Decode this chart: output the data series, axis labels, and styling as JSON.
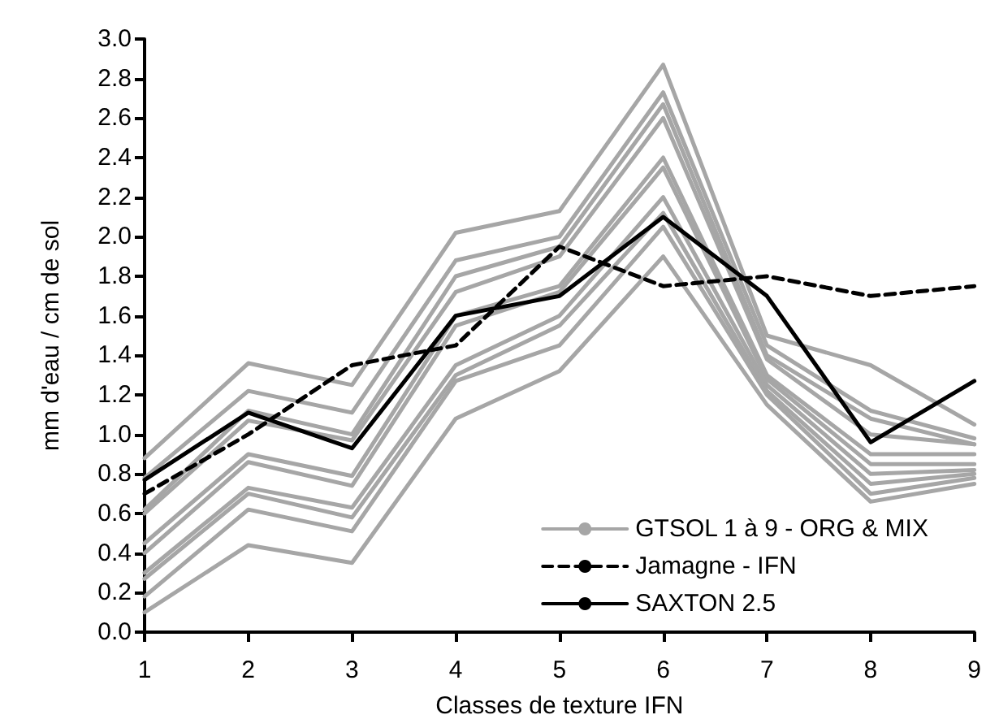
{
  "chart_data": {
    "type": "line",
    "xlabel": "Classes de texture IFN",
    "ylabel": "mm d'eau / cm de sol",
    "x": [
      1,
      2,
      3,
      4,
      5,
      6,
      7,
      8,
      9
    ],
    "xlim": [
      1,
      9
    ],
    "xticks": [
      1,
      2,
      3,
      4,
      5,
      6,
      7,
      8,
      9
    ],
    "ylim": [
      0,
      3
    ],
    "yticks": [
      {
        "value": 0,
        "label": "0.0"
      },
      {
        "value": 0.2,
        "label": "0.2"
      },
      {
        "value": 0.4,
        "label": "0.4"
      },
      {
        "value": 0.6,
        "label": "0.6"
      },
      {
        "value": 0.8,
        "label": "0.8"
      },
      {
        "value": 1,
        "label": "1.0"
      },
      {
        "value": 1.2,
        "label": "1.2"
      },
      {
        "value": 1.4,
        "label": "1.4"
      },
      {
        "value": 1.6,
        "label": "1.6"
      },
      {
        "value": 1.8,
        "label": "1.8"
      },
      {
        "value": 2,
        "label": "2.0"
      },
      {
        "value": 2.2,
        "label": "2.2"
      },
      {
        "value": 2.4,
        "label": "2.4"
      },
      {
        "value": 2.6,
        "label": "2.6"
      },
      {
        "value": 2.8,
        "label": "2.8"
      },
      {
        "value": 3,
        "label": "3.0"
      }
    ],
    "grid": false,
    "legend": "bottom right",
    "marker": "none",
    "series": [
      {
        "name": "GTSOL 1 à 9 - ORG & MIX",
        "color": "#a6a6a6",
        "line_style": "solid",
        "values": [
          0.88,
          1.36,
          1.25,
          2.02,
          2.13,
          2.87,
          1.5,
          1.35,
          1.05
        ]
      },
      {
        "color": "#a6a6a6",
        "line_style": "solid",
        "values": [
          0.78,
          1.22,
          1.11,
          1.88,
          2.0,
          2.73,
          1.45,
          1.12,
          0.98
        ]
      },
      {
        "color": "#a6a6a6",
        "line_style": "solid",
        "values": [
          0.62,
          1.12,
          1.0,
          1.8,
          1.95,
          2.67,
          1.4,
          1.08,
          0.95
        ]
      },
      {
        "color": "#a6a6a6",
        "line_style": "solid",
        "values": [
          0.6,
          1.07,
          0.97,
          1.72,
          1.9,
          2.6,
          1.38,
          1.0,
          0.95
        ]
      },
      {
        "color": "#a6a6a6",
        "line_style": "solid",
        "values": [
          0.45,
          0.9,
          0.79,
          1.6,
          1.75,
          2.4,
          1.3,
          0.9,
          0.9
        ]
      },
      {
        "color": "#a6a6a6",
        "line_style": "solid",
        "values": [
          0.4,
          0.86,
          0.74,
          1.55,
          1.72,
          2.35,
          1.28,
          0.85,
          0.85
        ]
      },
      {
        "color": "#a6a6a6",
        "line_style": "solid",
        "values": [
          0.3,
          0.73,
          0.63,
          1.35,
          1.6,
          2.2,
          1.25,
          0.8,
          0.82
        ]
      },
      {
        "color": "#a6a6a6",
        "line_style": "solid",
        "values": [
          0.27,
          0.7,
          0.58,
          1.3,
          1.55,
          2.12,
          1.22,
          0.75,
          0.8
        ]
      },
      {
        "color": "#a6a6a6",
        "line_style": "solid",
        "values": [
          0.18,
          0.62,
          0.51,
          1.27,
          1.45,
          2.05,
          1.2,
          0.7,
          0.78
        ]
      },
      {
        "color": "#a6a6a6",
        "line_style": "solid",
        "values": [
          0.1,
          0.44,
          0.35,
          1.08,
          1.32,
          1.9,
          1.15,
          0.66,
          0.75
        ]
      },
      {
        "name": "Jamagne - IFN",
        "color": "#000000",
        "line_style": "dashed",
        "values": [
          0.7,
          1.0,
          1.35,
          1.45,
          1.95,
          1.75,
          1.8,
          1.7,
          1.75
        ]
      },
      {
        "name": "SAXTON 2.5",
        "color": "#000000",
        "line_style": "solid",
        "values": [
          0.77,
          1.11,
          0.93,
          1.6,
          1.7,
          2.1,
          1.7,
          0.96,
          1.27
        ]
      }
    ]
  }
}
